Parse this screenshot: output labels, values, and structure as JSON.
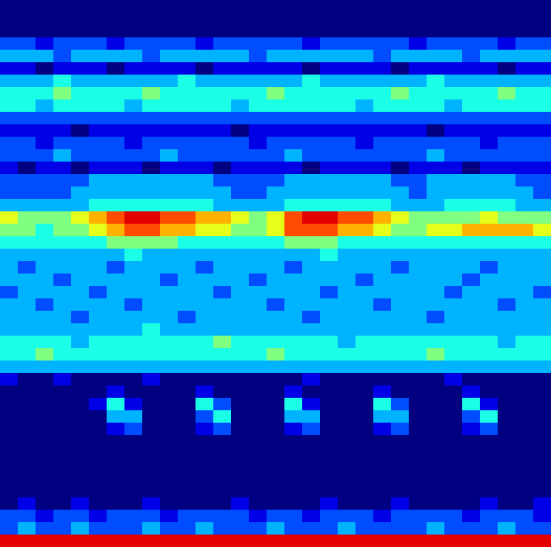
{
  "chart_data": {
    "type": "heatmap",
    "tick_labels": false,
    "zlim": [
      0,
      10
    ],
    "values": [
      [
        0,
        0,
        0,
        0,
        0,
        0,
        0,
        0,
        0,
        0,
        0,
        0,
        0,
        0,
        0,
        0,
        0,
        0,
        0,
        0,
        0,
        0,
        0,
        0,
        0,
        0,
        0,
        0,
        0,
        0,
        0
      ],
      [
        0,
        0,
        0,
        0,
        0,
        0,
        0,
        0,
        0,
        0,
        0,
        0,
        0,
        0,
        0,
        0,
        0,
        0,
        0,
        0,
        0,
        0,
        0,
        0,
        0,
        0,
        0,
        0,
        0,
        0,
        0
      ],
      [
        0,
        0,
        0,
        0,
        0,
        0,
        0,
        0,
        0,
        0,
        0,
        0,
        0,
        0,
        0,
        0,
        0,
        0,
        0,
        0,
        0,
        0,
        0,
        0,
        0,
        0,
        0,
        0,
        0,
        0,
        0
      ],
      [
        2,
        2,
        1,
        2,
        2,
        2,
        1,
        2,
        2,
        2,
        2,
        1,
        2,
        2,
        2,
        2,
        2,
        1,
        2,
        2,
        2,
        2,
        2,
        1,
        2,
        2,
        2,
        2,
        1,
        2,
        2
      ],
      [
        3,
        3,
        3,
        2,
        3,
        3,
        3,
        3,
        2,
        3,
        3,
        3,
        3,
        3,
        2,
        3,
        3,
        3,
        3,
        3,
        3,
        2,
        3,
        3,
        3,
        3,
        2,
        3,
        3,
        3,
        3
      ],
      [
        1,
        1,
        0,
        1,
        1,
        1,
        0,
        1,
        1,
        1,
        1,
        0,
        1,
        1,
        1,
        1,
        1,
        0,
        1,
        1,
        1,
        1,
        0,
        1,
        1,
        1,
        1,
        1,
        0,
        1,
        1
      ],
      [
        3,
        3,
        3,
        4,
        3,
        3,
        3,
        3,
        3,
        3,
        4,
        3,
        3,
        3,
        3,
        3,
        3,
        4,
        3,
        3,
        3,
        3,
        3,
        3,
        4,
        3,
        3,
        3,
        3,
        3,
        3
      ],
      [
        4,
        4,
        4,
        5,
        4,
        4,
        4,
        4,
        5,
        4,
        4,
        4,
        4,
        4,
        4,
        5,
        4,
        4,
        4,
        4,
        4,
        4,
        5,
        4,
        4,
        4,
        4,
        4,
        5,
        4,
        4
      ],
      [
        4,
        4,
        3,
        4,
        4,
        4,
        4,
        3,
        4,
        4,
        4,
        4,
        4,
        3,
        4,
        4,
        4,
        4,
        4,
        4,
        3,
        4,
        4,
        4,
        4,
        3,
        4,
        4,
        4,
        4,
        4
      ],
      [
        2,
        2,
        2,
        2,
        2,
        2,
        2,
        2,
        2,
        2,
        2,
        2,
        2,
        2,
        2,
        2,
        2,
        2,
        2,
        2,
        2,
        2,
        2,
        2,
        2,
        2,
        2,
        2,
        2,
        2,
        2
      ],
      [
        1,
        1,
        1,
        1,
        0,
        1,
        1,
        1,
        1,
        1,
        1,
        1,
        1,
        0,
        1,
        1,
        1,
        1,
        1,
        1,
        1,
        1,
        1,
        1,
        0,
        1,
        1,
        1,
        1,
        1,
        1
      ],
      [
        2,
        2,
        1,
        2,
        2,
        2,
        2,
        1,
        2,
        2,
        2,
        2,
        2,
        2,
        1,
        2,
        2,
        2,
        2,
        2,
        1,
        2,
        2,
        2,
        2,
        2,
        2,
        1,
        2,
        2,
        2
      ],
      [
        2,
        2,
        2,
        3,
        2,
        2,
        2,
        2,
        2,
        3,
        2,
        2,
        2,
        2,
        2,
        2,
        3,
        2,
        2,
        2,
        2,
        2,
        2,
        2,
        3,
        2,
        2,
        2,
        2,
        2,
        2
      ],
      [
        1,
        0,
        1,
        1,
        0,
        1,
        1,
        1,
        0,
        1,
        1,
        1,
        0,
        1,
        1,
        1,
        1,
        0,
        1,
        1,
        1,
        1,
        0,
        1,
        1,
        1,
        0,
        1,
        1,
        1,
        1
      ],
      [
        2,
        2,
        2,
        2,
        2,
        3,
        3,
        3,
        3,
        3,
        3,
        3,
        2,
        2,
        2,
        2,
        3,
        3,
        3,
        3,
        3,
        3,
        2,
        2,
        3,
        3,
        3,
        3,
        3,
        2,
        2
      ],
      [
        2,
        2,
        2,
        2,
        3,
        3,
        3,
        3,
        3,
        3,
        3,
        3,
        3,
        2,
        2,
        3,
        3,
        3,
        3,
        3,
        3,
        3,
        3,
        2,
        3,
        3,
        3,
        3,
        3,
        3,
        2
      ],
      [
        3,
        3,
        3,
        3,
        3,
        4,
        4,
        4,
        4,
        4,
        4,
        4,
        3,
        3,
        3,
        3,
        4,
        4,
        4,
        4,
        4,
        4,
        3,
        3,
        3,
        4,
        4,
        4,
        4,
        3,
        3
      ],
      [
        6,
        5,
        5,
        5,
        6,
        7,
        8,
        9,
        9,
        8,
        8,
        7,
        7,
        6,
        5,
        6,
        8,
        9,
        9,
        8,
        8,
        7,
        6,
        5,
        5,
        5,
        5,
        6,
        5,
        5,
        5
      ],
      [
        5,
        5,
        4,
        5,
        5,
        6,
        7,
        8,
        8,
        7,
        7,
        6,
        6,
        5,
        5,
        6,
        8,
        8,
        8,
        7,
        7,
        6,
        5,
        5,
        6,
        6,
        7,
        7,
        7,
        7,
        6
      ],
      [
        4,
        4,
        4,
        4,
        4,
        4,
        5,
        5,
        5,
        5,
        4,
        4,
        4,
        4,
        4,
        4,
        5,
        5,
        5,
        4,
        4,
        4,
        4,
        4,
        4,
        4,
        4,
        4,
        4,
        4,
        4
      ],
      [
        3,
        3,
        3,
        3,
        3,
        3,
        3,
        4,
        3,
        3,
        3,
        3,
        3,
        3,
        3,
        3,
        3,
        3,
        4,
        3,
        3,
        3,
        3,
        3,
        3,
        3,
        3,
        3,
        3,
        3,
        3
      ],
      [
        3,
        2,
        3,
        3,
        3,
        3,
        2,
        3,
        3,
        3,
        3,
        2,
        3,
        3,
        3,
        3,
        2,
        3,
        3,
        3,
        3,
        3,
        2,
        3,
        3,
        3,
        3,
        2,
        3,
        3,
        3
      ],
      [
        3,
        3,
        3,
        2,
        3,
        3,
        3,
        3,
        3,
        2,
        3,
        3,
        3,
        3,
        2,
        3,
        3,
        3,
        3,
        3,
        2,
        3,
        3,
        3,
        3,
        3,
        2,
        3,
        3,
        3,
        3
      ],
      [
        2,
        3,
        3,
        3,
        3,
        2,
        3,
        3,
        3,
        3,
        3,
        3,
        2,
        3,
        3,
        3,
        3,
        3,
        2,
        3,
        3,
        3,
        3,
        3,
        3,
        2,
        3,
        3,
        3,
        3,
        2
      ],
      [
        3,
        3,
        2,
        3,
        3,
        3,
        3,
        2,
        3,
        3,
        3,
        3,
        3,
        3,
        3,
        2,
        3,
        3,
        3,
        3,
        3,
        2,
        3,
        3,
        3,
        3,
        3,
        3,
        2,
        3,
        3
      ],
      [
        3,
        3,
        3,
        3,
        2,
        3,
        3,
        3,
        3,
        3,
        2,
        3,
        3,
        3,
        3,
        3,
        3,
        2,
        3,
        3,
        3,
        3,
        3,
        3,
        2,
        3,
        3,
        3,
        3,
        3,
        3
      ],
      [
        3,
        3,
        3,
        3,
        3,
        3,
        3,
        3,
        4,
        3,
        3,
        3,
        3,
        3,
        3,
        3,
        3,
        3,
        3,
        3,
        3,
        3,
        3,
        3,
        3,
        3,
        3,
        3,
        3,
        3,
        3
      ],
      [
        4,
        4,
        4,
        4,
        3,
        4,
        4,
        4,
        4,
        4,
        4,
        4,
        5,
        4,
        4,
        4,
        4,
        4,
        4,
        3,
        4,
        4,
        4,
        4,
        4,
        4,
        4,
        4,
        3,
        4,
        4
      ],
      [
        4,
        4,
        5,
        4,
        4,
        4,
        4,
        4,
        4,
        4,
        4,
        4,
        4,
        4,
        4,
        5,
        4,
        4,
        4,
        4,
        4,
        4,
        4,
        4,
        5,
        4,
        4,
        4,
        4,
        4,
        4
      ],
      [
        3,
        3,
        3,
        3,
        3,
        3,
        3,
        3,
        3,
        3,
        3,
        3,
        3,
        3,
        3,
        3,
        3,
        3,
        3,
        3,
        3,
        3,
        3,
        3,
        3,
        3,
        3,
        3,
        3,
        3,
        3
      ],
      [
        1,
        0,
        0,
        1,
        0,
        0,
        0,
        0,
        1,
        0,
        0,
        0,
        0,
        0,
        0,
        0,
        0,
        1,
        0,
        0,
        0,
        0,
        0,
        0,
        0,
        1,
        0,
        0,
        0,
        0,
        0
      ],
      [
        0,
        0,
        0,
        0,
        0,
        0,
        1,
        0,
        0,
        0,
        0,
        1,
        0,
        0,
        0,
        0,
        1,
        0,
        0,
        0,
        0,
        1,
        0,
        0,
        0,
        0,
        1,
        0,
        0,
        0,
        0
      ],
      [
        0,
        0,
        0,
        0,
        0,
        1,
        4,
        1,
        0,
        0,
        0,
        4,
        2,
        0,
        0,
        0,
        4,
        1,
        0,
        0,
        0,
        4,
        2,
        0,
        0,
        0,
        4,
        1,
        0,
        0,
        0
      ],
      [
        0,
        0,
        0,
        0,
        0,
        0,
        3,
        3,
        0,
        0,
        0,
        2,
        4,
        0,
        0,
        0,
        3,
        3,
        0,
        0,
        0,
        3,
        3,
        0,
        0,
        0,
        2,
        4,
        0,
        0,
        0
      ],
      [
        0,
        0,
        0,
        0,
        0,
        0,
        1,
        2,
        0,
        0,
        0,
        1,
        2,
        0,
        0,
        0,
        1,
        2,
        0,
        0,
        0,
        1,
        2,
        0,
        0,
        0,
        1,
        2,
        0,
        0,
        0
      ],
      [
        0,
        0,
        0,
        0,
        0,
        0,
        0,
        0,
        0,
        0,
        0,
        0,
        0,
        0,
        0,
        0,
        0,
        0,
        0,
        0,
        0,
        0,
        0,
        0,
        0,
        0,
        0,
        0,
        0,
        0,
        0
      ],
      [
        0,
        0,
        0,
        0,
        0,
        0,
        0,
        0,
        0,
        0,
        0,
        0,
        0,
        0,
        0,
        0,
        0,
        0,
        0,
        0,
        0,
        0,
        0,
        0,
        0,
        0,
        0,
        0,
        0,
        0,
        0
      ],
      [
        0,
        0,
        0,
        0,
        0,
        0,
        0,
        0,
        0,
        0,
        0,
        0,
        0,
        0,
        0,
        0,
        0,
        0,
        0,
        0,
        0,
        0,
        0,
        0,
        0,
        0,
        0,
        0,
        0,
        0,
        0
      ],
      [
        0,
        0,
        0,
        0,
        0,
        0,
        0,
        0,
        0,
        0,
        0,
        0,
        0,
        0,
        0,
        0,
        0,
        0,
        0,
        0,
        0,
        0,
        0,
        0,
        0,
        0,
        0,
        0,
        0,
        0,
        0
      ],
      [
        0,
        0,
        0,
        0,
        0,
        0,
        0,
        0,
        0,
        0,
        0,
        0,
        0,
        0,
        0,
        0,
        0,
        0,
        0,
        0,
        0,
        0,
        0,
        0,
        0,
        0,
        0,
        0,
        0,
        0,
        0
      ],
      [
        0,
        1,
        0,
        0,
        1,
        0,
        0,
        0,
        1,
        0,
        0,
        0,
        0,
        1,
        0,
        0,
        0,
        0,
        1,
        0,
        0,
        0,
        1,
        0,
        0,
        0,
        0,
        1,
        0,
        0,
        1
      ],
      [
        2,
        2,
        1,
        2,
        2,
        1,
        2,
        2,
        2,
        1,
        2,
        2,
        2,
        2,
        1,
        2,
        2,
        1,
        2,
        2,
        2,
        1,
        2,
        2,
        2,
        2,
        1,
        2,
        2,
        2,
        1
      ],
      [
        2,
        3,
        2,
        2,
        3,
        2,
        2,
        2,
        3,
        2,
        2,
        3,
        2,
        2,
        2,
        3,
        2,
        2,
        2,
        3,
        2,
        2,
        2,
        2,
        3,
        2,
        2,
        2,
        3,
        2,
        2
      ],
      [
        9,
        9,
        9,
        9,
        9,
        9,
        9,
        9,
        9,
        9,
        9,
        9,
        9,
        9,
        9,
        9,
        9,
        9,
        9,
        9,
        9,
        9,
        9,
        9,
        9,
        9,
        9,
        9,
        9,
        9,
        9
      ]
    ]
  }
}
